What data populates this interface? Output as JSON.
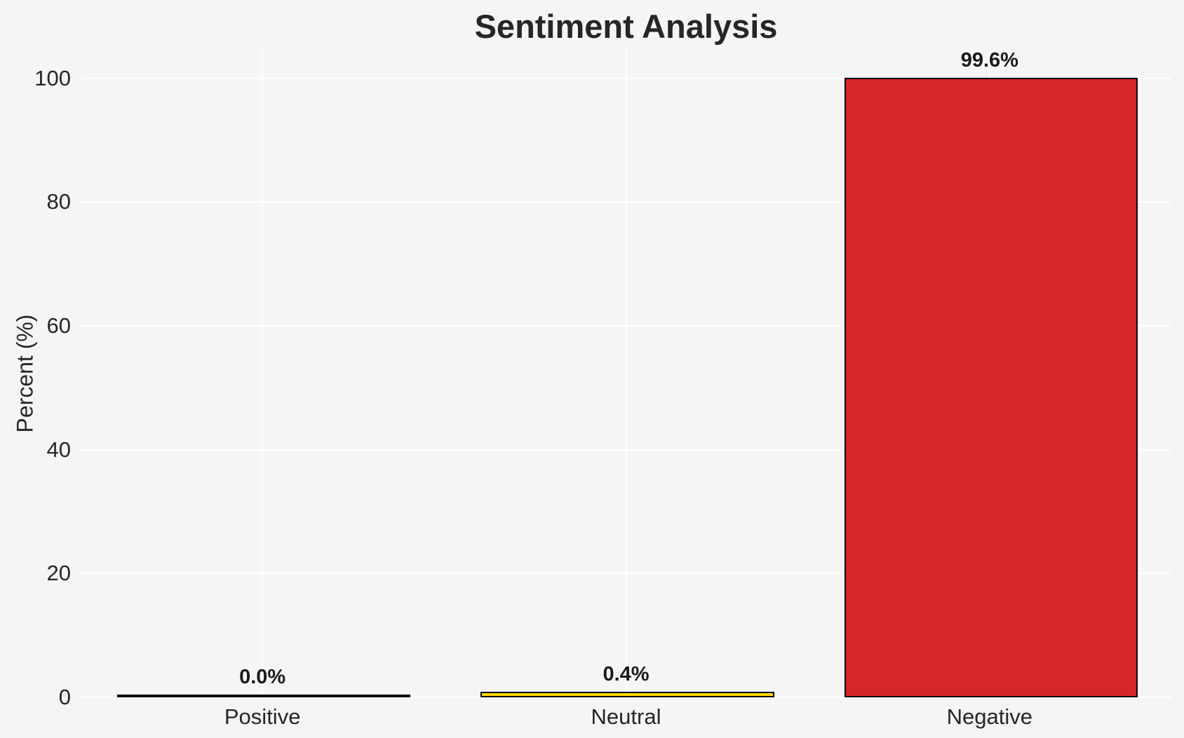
{
  "chart_data": {
    "type": "bar",
    "title": "Sentiment Analysis",
    "xlabel": "",
    "ylabel": "Percent (%)",
    "categories": [
      "Positive",
      "Neutral",
      "Negative"
    ],
    "values": [
      0.0,
      0.4,
      99.6
    ],
    "value_labels": [
      "0.0%",
      "0.4%",
      "99.6%"
    ],
    "bar_colors": [
      "transparent",
      "#ffd700",
      "#d62728"
    ],
    "bar_edge_color": "#0a0a0a",
    "yticks": [
      0,
      20,
      40,
      60,
      80,
      100
    ],
    "ylim": [
      0,
      104.5
    ],
    "grid": true,
    "grid_color": "#ffffff",
    "background_color": "#f5f5f6",
    "text_color": "#262626",
    "legend_position": "none"
  }
}
